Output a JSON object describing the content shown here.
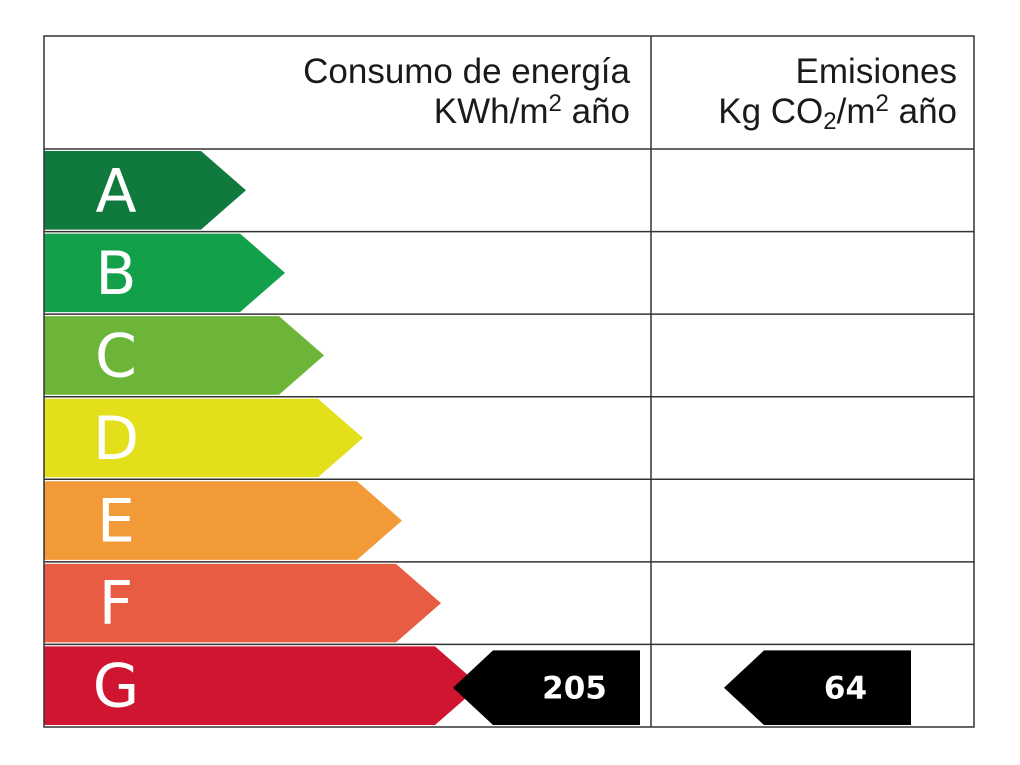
{
  "header": {
    "energy_title": "Consumo de energía",
    "energy_unit_pre": "KWh/m",
    "energy_unit_sup": "2",
    "energy_unit_post": " año",
    "emissions_title": "Emisiones",
    "emissions_unit_pre": "Kg CO",
    "emissions_unit_sub": "2",
    "emissions_unit_mid": "/m",
    "emissions_unit_sup": "2",
    "emissions_unit_post": " año"
  },
  "chart_data": {
    "type": "table",
    "classes": [
      {
        "letter": "A",
        "color": "#107a3e"
      },
      {
        "letter": "B",
        "color": "#12a04a"
      },
      {
        "letter": "C",
        "color": "#6db539"
      },
      {
        "letter": "D",
        "color": "#e3df1a"
      },
      {
        "letter": "E",
        "color": "#f29a38"
      },
      {
        "letter": "F",
        "color": "#e95c44"
      },
      {
        "letter": "G",
        "color": "#cf1530"
      }
    ],
    "rating_class": "G",
    "energy_value": "205",
    "emissions_value": "64"
  },
  "colors": {
    "grid": "#333333",
    "marker": "#000000",
    "marker_text": "#ffffff",
    "letter_text": "#ffffff"
  }
}
